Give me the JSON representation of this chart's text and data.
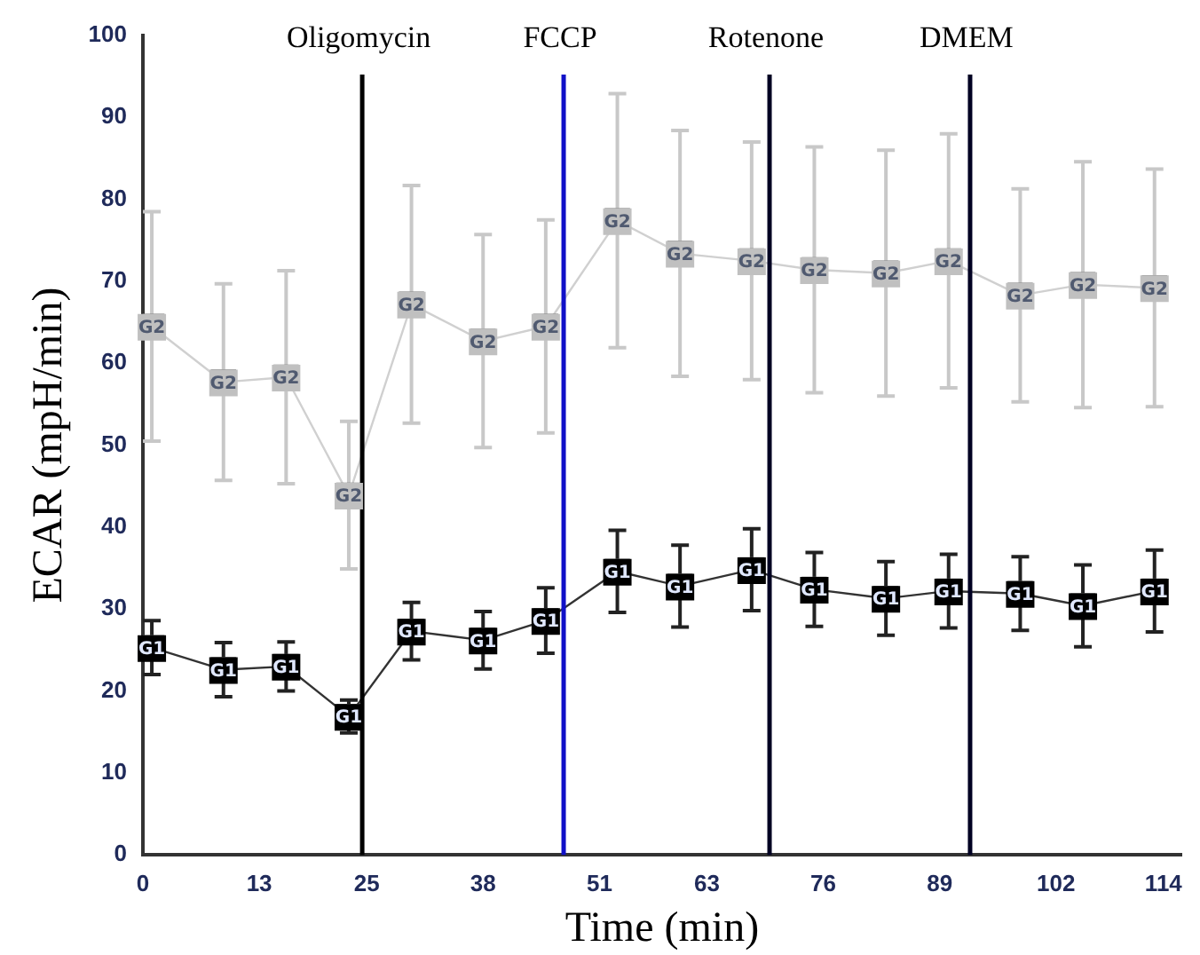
{
  "chart_data": {
    "type": "line",
    "xlabel": "Time (min)",
    "ylabel": "ECAR (mpH/min)",
    "x": [
      1,
      9,
      16,
      23,
      30,
      38,
      45,
      53,
      60,
      68,
      75,
      83,
      90,
      98,
      105,
      113
    ],
    "series": [
      {
        "name": "G2",
        "color": "#c0c0c0",
        "values": [
          64.5,
          57.7,
          58.3,
          43.9,
          67.2,
          62.7,
          64.5,
          77.4,
          73.4,
          72.5,
          71.4,
          71,
          72.5,
          68.3,
          69.6,
          69.2
        ],
        "errors": [
          14,
          12,
          13,
          9,
          14.5,
          13,
          13,
          15.5,
          15,
          14.5,
          15,
          15,
          15.5,
          13,
          15,
          14.5
        ]
      },
      {
        "name": "G1",
        "color": "#000000",
        "values": [
          25.3,
          22.6,
          23,
          16.9,
          27.3,
          26.2,
          28.6,
          34.6,
          32.8,
          34.8,
          32.4,
          31.3,
          32.2,
          31.9,
          30.4,
          32.2
        ],
        "errors": [
          3.3,
          3.3,
          3,
          2,
          3.5,
          3.5,
          4,
          5,
          5,
          5,
          4.5,
          4.5,
          4.5,
          4.5,
          5,
          5
        ]
      }
    ],
    "xlim": [
      0,
      116
    ],
    "xticks": [
      0,
      13,
      25,
      38,
      51,
      63,
      76,
      89,
      102,
      114
    ],
    "ylim": [
      0,
      100
    ],
    "yticks": [
      0,
      10,
      20,
      30,
      40,
      50,
      60,
      70,
      80,
      90,
      100
    ],
    "ref_lines": [
      {
        "axis": "x",
        "value": 24.5,
        "label": "Oligomycin",
        "color": "#000000"
      },
      {
        "axis": "x",
        "value": 47,
        "label": "FCCP",
        "color": "#1010c8"
      },
      {
        "axis": "x",
        "value": 70,
        "label": "Rotenone",
        "color": "#000022"
      },
      {
        "axis": "x",
        "value": 92.4,
        "label": "DMEM",
        "color": "#000022"
      }
    ],
    "marker": "square",
    "grid": false,
    "legend": false
  }
}
